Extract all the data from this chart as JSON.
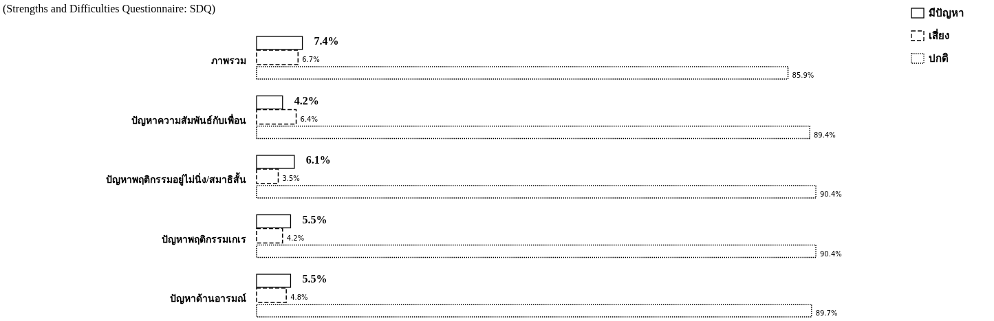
{
  "chart_data": {
    "type": "bar",
    "orientation": "horizontal",
    "title": "(Strengths and Difficulties  Questionnaire: SDQ)",
    "categories": [
      "ภาพรวม",
      "ปัญหาความสัมพันธ์กับเพื่อน",
      "ปัญหาพฤติกรรมอยู่ไม่นิ่ง/สมาธิสั้น",
      "ปัญหาพฤติกรรมเกเร",
      "ปัญหาด้านอารมณ์"
    ],
    "series": [
      {
        "name": "มีปัญหา",
        "color": "#000000",
        "line_style": "solid",
        "values": [
          7.4,
          4.2,
          6.1,
          5.5,
          5.5
        ],
        "value_labels": [
          "7.4%",
          "4.2%",
          "6.1%",
          "5.5%",
          "5.5%"
        ]
      },
      {
        "name": "เสี่ยง",
        "color": "#000000",
        "line_style": "dashed",
        "values": [
          6.7,
          6.4,
          3.5,
          4.2,
          4.8
        ],
        "value_labels": [
          "6.7%",
          "6.4%",
          "3.5%",
          "4.2%",
          "4.8%"
        ]
      },
      {
        "name": "ปกติ",
        "color": "#000000",
        "line_style": "dotted",
        "values": [
          85.9,
          89.4,
          90.4,
          90.4,
          89.7
        ],
        "value_labels": [
          "85.9%",
          "89.4%",
          "90.4%",
          "90.4%",
          "89.7%"
        ]
      }
    ],
    "legend": "top right",
    "tick_labels": "y"
  }
}
